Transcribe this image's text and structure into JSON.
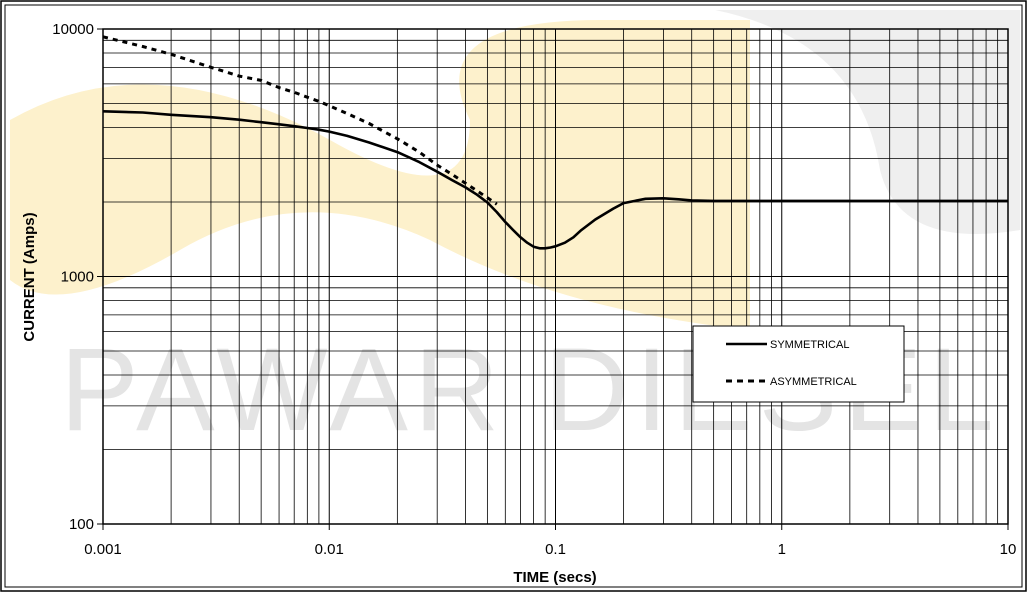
{
  "watermark": {
    "text": "PAWAR DIESEL AS",
    "colors": {
      "warm": "#fdf1cc",
      "gray": "#efefef",
      "text": "#e4e4e4"
    }
  },
  "chart_data": {
    "type": "line",
    "xscale": "log",
    "yscale": "log",
    "xlim": [
      0.001,
      10
    ],
    "ylim": [
      100,
      10000
    ],
    "grid": true,
    "xlabel": "TIME (secs)",
    "ylabel": "CURRENT (Amps)",
    "x_ticks": [
      "0.001",
      "0.01",
      "0.1",
      "1",
      "10"
    ],
    "y_ticks": [
      "100",
      "1000",
      "10000"
    ],
    "legend_position": "right",
    "series": [
      {
        "name": "SYMMETRICAL",
        "style": "solid",
        "color": "#000000",
        "x": [
          0.001,
          0.0015,
          0.002,
          0.003,
          0.004,
          0.005,
          0.006,
          0.007,
          0.008,
          0.009,
          0.01,
          0.012,
          0.015,
          0.02,
          0.025,
          0.03,
          0.035,
          0.04,
          0.045,
          0.05,
          0.055,
          0.06,
          0.065,
          0.07,
          0.075,
          0.08,
          0.085,
          0.09,
          0.095,
          0.1,
          0.11,
          0.12,
          0.13,
          0.15,
          0.18,
          0.2,
          0.25,
          0.3,
          0.35,
          0.4,
          0.5,
          0.7,
          1,
          2,
          5,
          10
        ],
        "y": [
          4650,
          4600,
          4500,
          4400,
          4300,
          4200,
          4120,
          4050,
          3980,
          3920,
          3850,
          3700,
          3480,
          3180,
          2900,
          2650,
          2450,
          2290,
          2140,
          1990,
          1820,
          1660,
          1540,
          1440,
          1370,
          1320,
          1300,
          1300,
          1310,
          1325,
          1370,
          1440,
          1540,
          1700,
          1880,
          1980,
          2060,
          2070,
          2050,
          2030,
          2020,
          2020,
          2020,
          2020,
          2020,
          2020
        ]
      },
      {
        "name": "ASYMMETRICAL",
        "style": "dashed",
        "color": "#000000",
        "x": [
          0.001,
          0.0015,
          0.002,
          0.003,
          0.004,
          0.005,
          0.006,
          0.007,
          0.008,
          0.009,
          0.01,
          0.012,
          0.015,
          0.02,
          0.025,
          0.03,
          0.035,
          0.04,
          0.045,
          0.05,
          0.055
        ],
        "y": [
          9300,
          8500,
          7900,
          7000,
          6450,
          6200,
          5800,
          5550,
          5300,
          5100,
          4900,
          4550,
          4150,
          3600,
          3180,
          2820,
          2580,
          2380,
          2220,
          2080,
          1960
        ]
      }
    ]
  }
}
